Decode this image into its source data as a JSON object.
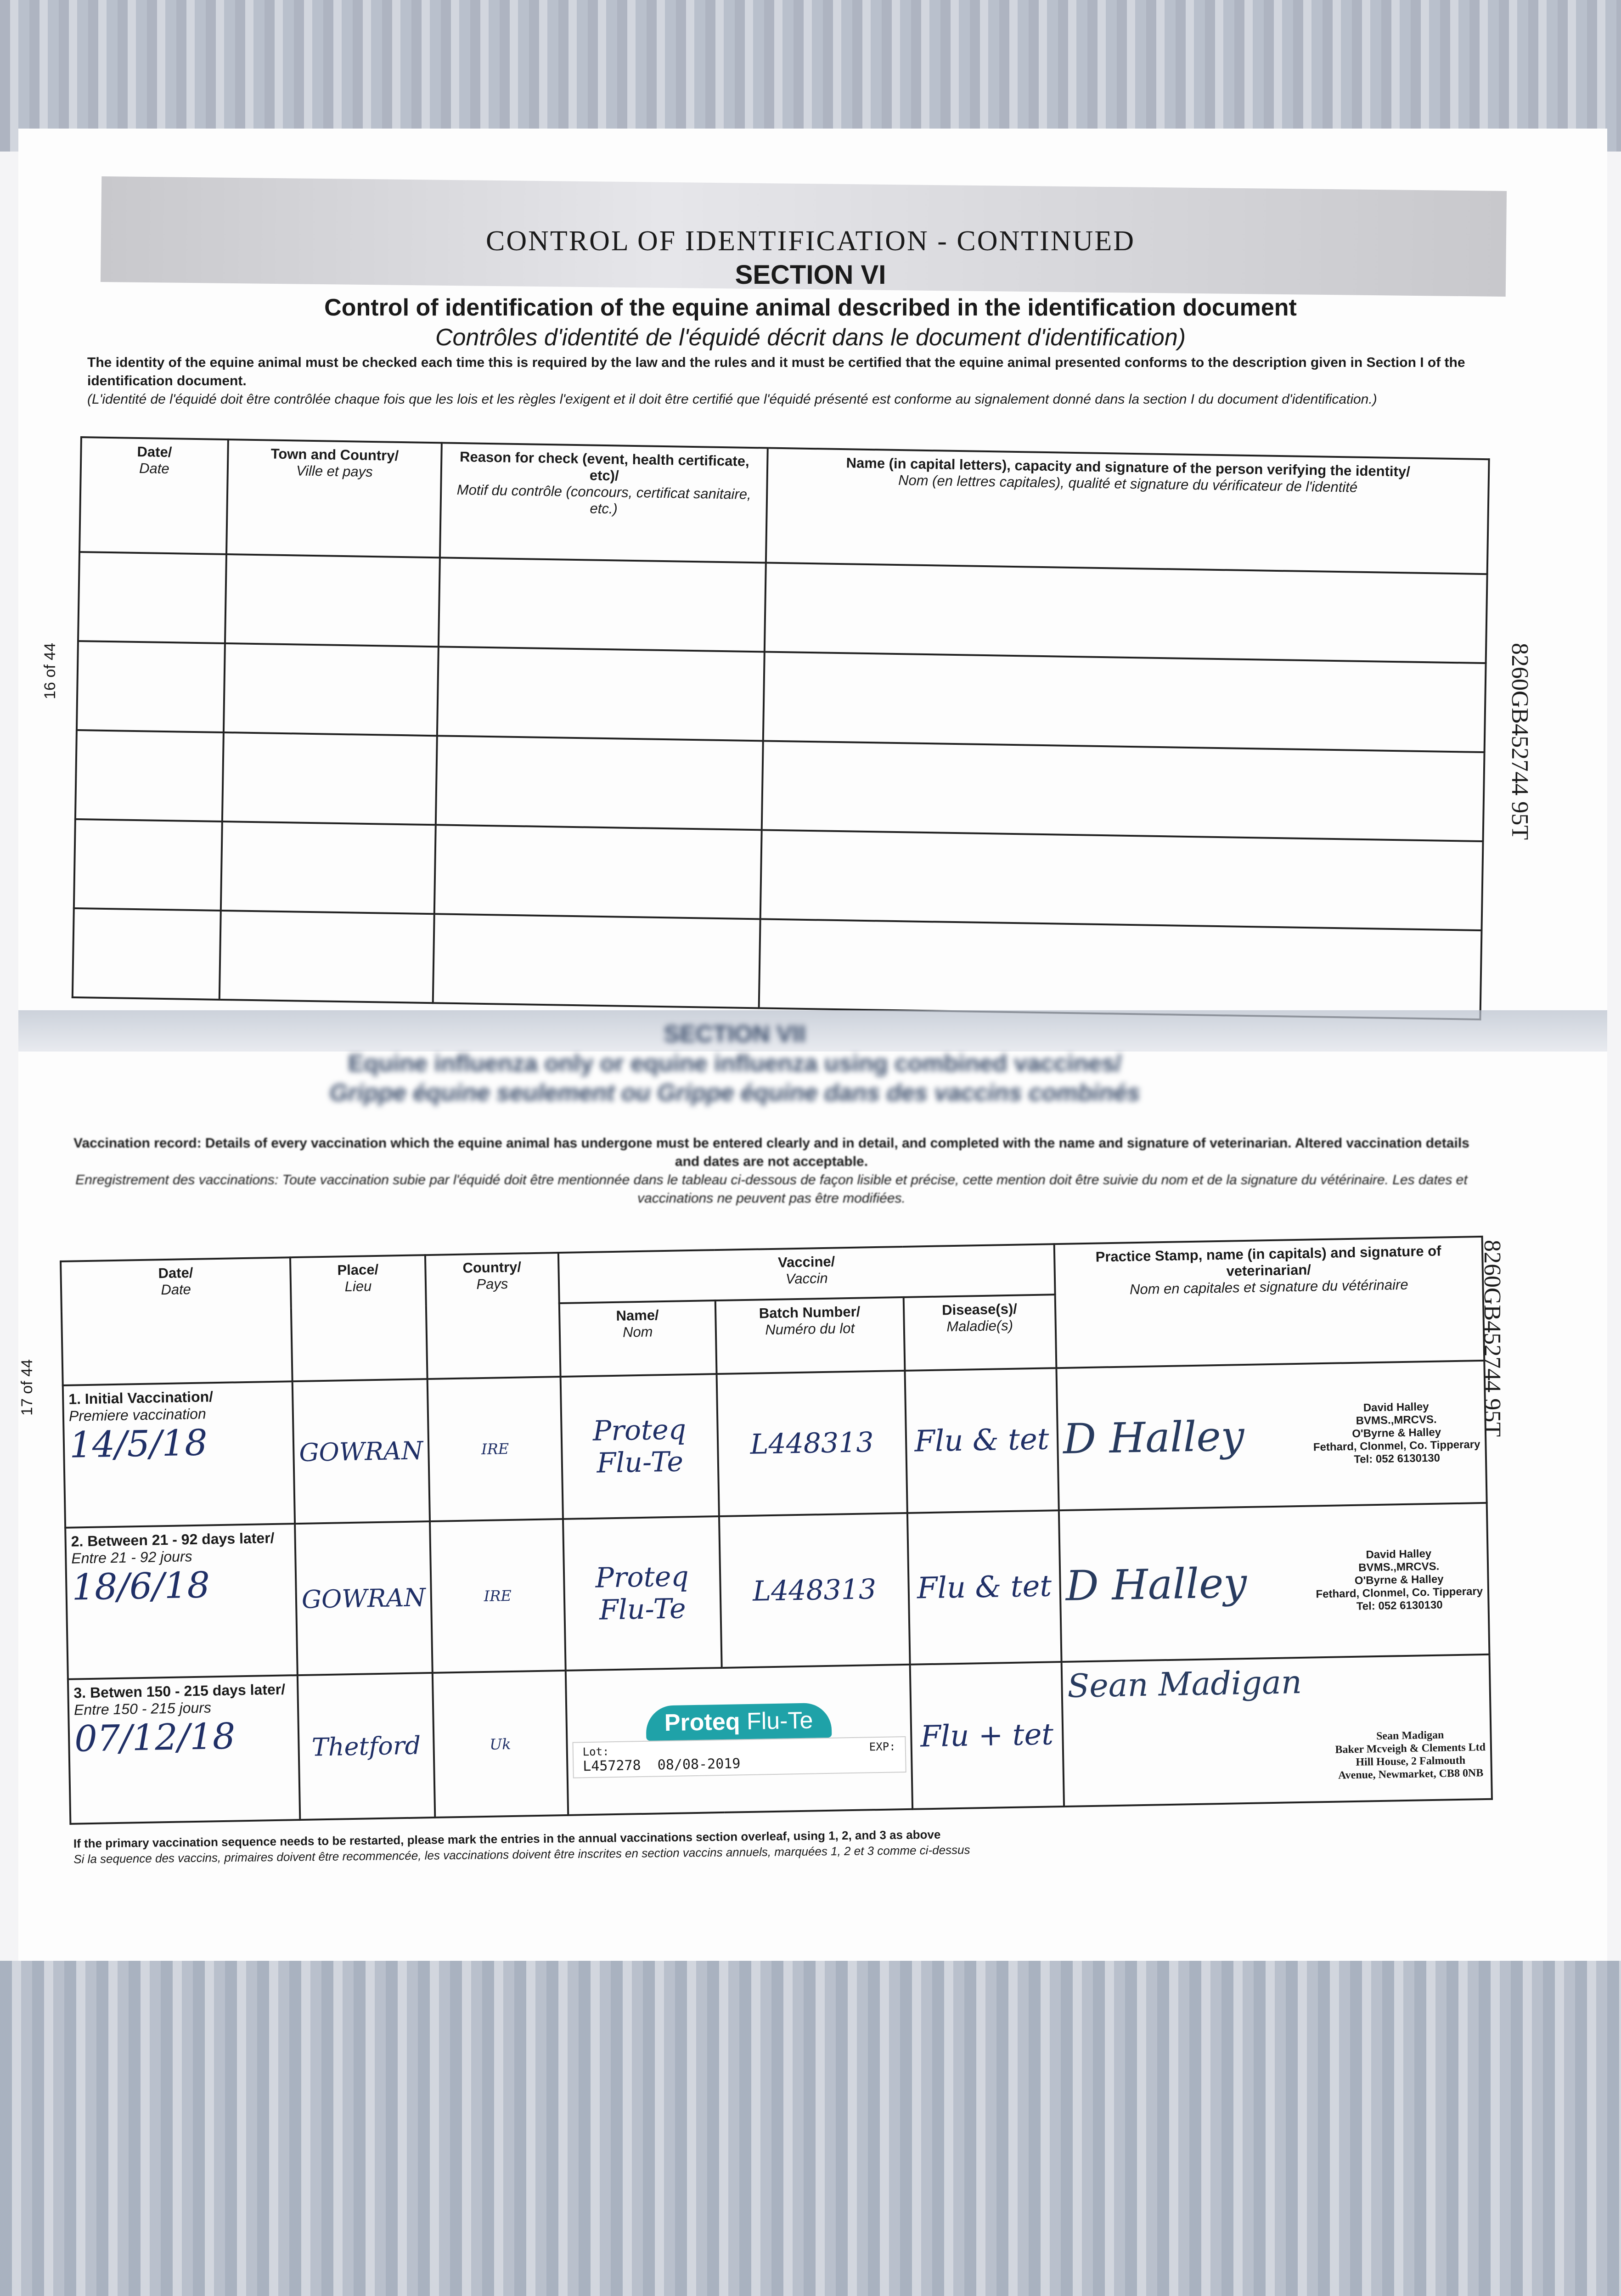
{
  "header": {
    "banner": "CONTROL OF IDENTIFICATION - CONTINUED",
    "section": "SECTION VI",
    "title_en": "Control of identification of the equine animal described in the identification document",
    "title_fr": "Contrôles d'identité de l'équidé décrit dans le document d'identification)",
    "intro_en": "The identity of the equine animal must be checked each time this is required by the law and the rules and it must be certified that the equine animal presented conforms to the description given in Section I of the identification document.",
    "intro_fr": "(L'identité de l'équidé doit être contrôlée chaque fois que les lois et les règles l'exigent et il doit être certifié que l'équidé présenté est conforme au signalement donné dans la section I du document d'identification.)"
  },
  "side": {
    "page_top": "16 of 44",
    "page_bottom": "17 of 44",
    "id_top": "8260GB452744 95T",
    "id_bottom": "8260GB452744 95T"
  },
  "control_table": {
    "columns": [
      {
        "en": "Date/",
        "fr": "Date"
      },
      {
        "en": "Town and Country/",
        "fr": "Ville et pays"
      },
      {
        "en": "Reason for check (event, health certificate, etc)/",
        "fr": "Motif du contrôle (concours, certificat sanitaire, etc.)"
      },
      {
        "en": "Name (in capital letters), capacity and signature of the person verifying the identity/",
        "fr": "Nom (en lettres capitales), qualité et signature du vérificateur de l'identité"
      }
    ]
  },
  "section7": {
    "heading": "SECTION VII",
    "title_en": "Equine influenza only or equine influenza using combined vaccines/",
    "title_fr": "Grippe équine seulement ou Grippe équine dans des vaccins combinés",
    "record_en": "Vaccination record: Details of every vaccination which the equine animal has undergone must be entered clearly and in detail, and completed with the name and signature of veterinarian. Altered vaccination details and dates are not acceptable.",
    "record_fr": "Enregistrement des vaccinations: Toute vaccination subie par l'équidé doit être mentionnée dans le tableau ci-dessous de façon lisible et précise, cette mention doit être suivie du nom et de la signature du vétérinaire. Les dates et vaccinations ne peuvent pas être modifiées."
  },
  "vaccine_table": {
    "headers": {
      "date": {
        "en": "Date/",
        "fr": "Date"
      },
      "place": {
        "en": "Place/",
        "fr": "Lieu"
      },
      "country": {
        "en": "Country/",
        "fr": "Pays"
      },
      "vaccine": {
        "en": "Vaccine/",
        "fr": "Vaccin"
      },
      "name": {
        "en": "Name/",
        "fr": "Nom"
      },
      "batch": {
        "en": "Batch Number/",
        "fr": "Numéro du lot"
      },
      "disease": {
        "en": "Disease(s)/",
        "fr": "Maladie(s)"
      },
      "vet": {
        "en": "Practice Stamp, name (in capitals) and signature of veterinarian/",
        "fr": "Nom en capitales et signature du vétérinaire"
      }
    },
    "rows": [
      {
        "label_en": "1. Initial Vaccination/",
        "label_fr": "Premiere vaccination",
        "date": "14/5/18",
        "place": "GOWRAN",
        "country": "IRE",
        "name": "Proteq Flu-Te",
        "batch": "L448313",
        "disease": "Flu & tet",
        "signature": "D Halley",
        "stamp": [
          "David Halley",
          "BVMS.,MRCVS.",
          "O'Byrne & Halley",
          "Fethard, Clonmel, Co. Tipperary",
          "Tel: 052 6130130"
        ]
      },
      {
        "label_en": "2. Between 21 - 92 days later/",
        "label_fr": "Entre 21 - 92 jours",
        "date": "18/6/18",
        "place": "GOWRAN",
        "country": "IRE",
        "name": "Proteq Flu-Te",
        "batch": "L448313",
        "disease": "Flu & tet",
        "signature": "D Halley",
        "stamp": [
          "David Halley",
          "BVMS.,MRCVS.",
          "O'Byrne & Halley",
          "Fethard, Clonmel, Co. Tipperary",
          "Tel: 052 6130130"
        ]
      },
      {
        "label_en": "3. Betwen 150 - 215 days later/",
        "label_fr": "Entre 150 - 215 jours",
        "date": "07/12/18",
        "place": "Thetford",
        "country": "Uk",
        "label_sticker": {
          "brand": "Proteq",
          "product": "Flu-Te",
          "lot_label": "Lot:",
          "exp_label": "EXP:",
          "lot": "L457278",
          "exp": "08/08-2019"
        },
        "disease": "Flu + tet",
        "signature": "Sean Madigan",
        "stamp": [
          "Sean Madigan",
          "Baker Mcveigh & Clements Ltd",
          "Hill House, 2 Falmouth",
          "Avenue, Newmarket, CB8 0NB"
        ]
      }
    ]
  },
  "footer": {
    "note_en": "If the primary vaccination sequence needs to be restarted, please mark the entries in the annual vaccinations section overleaf, using 1, 2, and 3 as above",
    "note_fr": "Si la sequence des vaccins, primaires doivent être recommencée, les vaccinations doivent être inscrites en section vaccins annuels, marquées 1, 2 et 3 comme ci-dessus"
  },
  "colors": {
    "ink": "#1f2f66",
    "label_teal": "#1fa2a8"
  }
}
